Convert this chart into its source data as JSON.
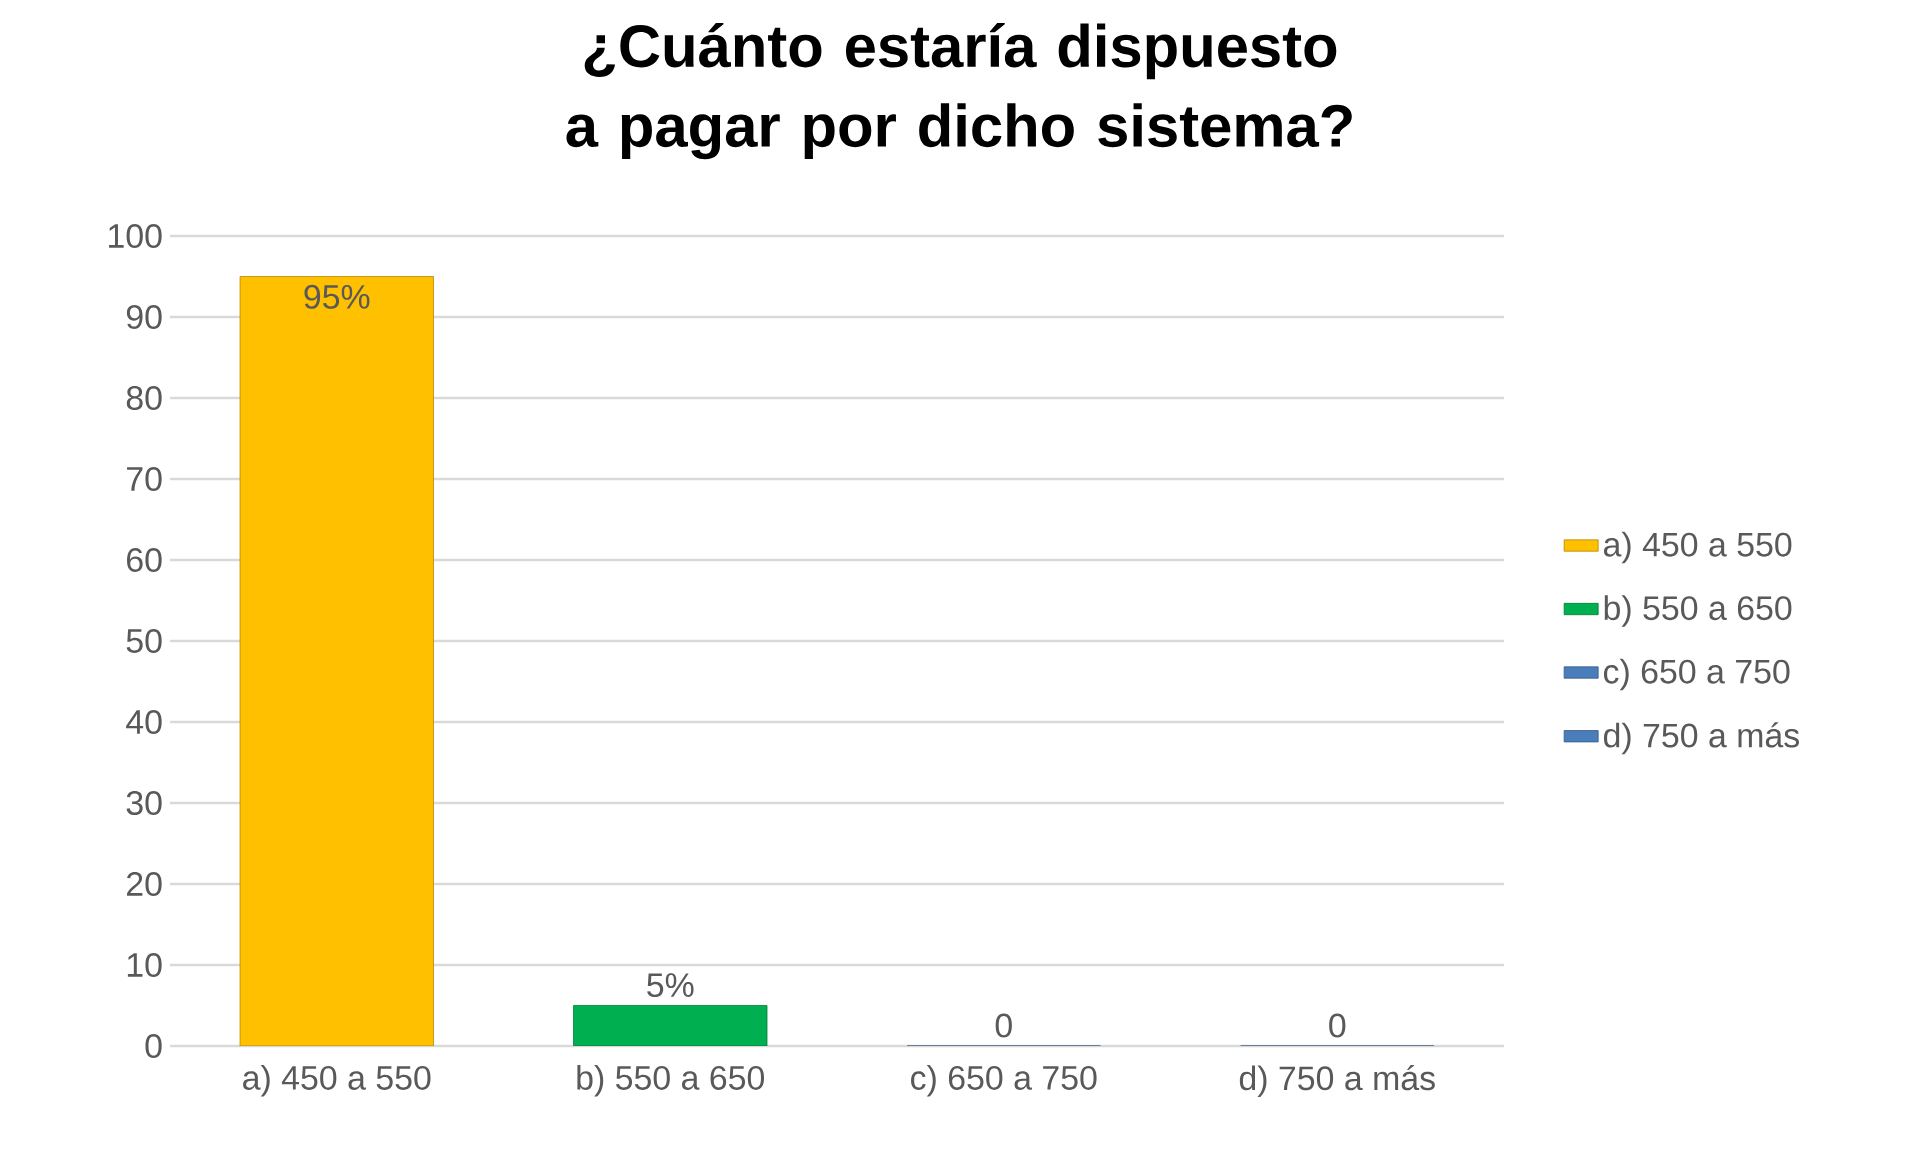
{
  "chart_data": {
    "type": "bar",
    "title": "¿Cuánto estaría dispuesto a pagar por dicho sistema?",
    "categories": [
      "a) 450 a 550",
      "b) 550 a 650",
      "c) 650 a 750",
      "d) 750 a más"
    ],
    "series": [
      {
        "name": "a) 450 a 550",
        "color": "#ffc000",
        "values": [
          95,
          null,
          null,
          null
        ],
        "value_labels": [
          "95%",
          null,
          null,
          null
        ]
      },
      {
        "name": "b) 550 a 650",
        "color": "#00b050",
        "values": [
          null,
          5,
          null,
          null
        ],
        "value_labels": [
          null,
          "5%",
          null,
          null
        ]
      },
      {
        "name": "c) 650 a 750",
        "color": "#4a7ebb",
        "values": [
          null,
          null,
          0,
          null
        ],
        "value_labels": [
          null,
          null,
          "0",
          null
        ]
      },
      {
        "name": "d) 750 a más",
        "color": "#4a7ebb",
        "values": [
          null,
          null,
          null,
          0
        ],
        "value_labels": [
          null,
          null,
          null,
          "0"
        ]
      }
    ],
    "ylim": [
      0,
      100
    ],
    "yticks": [
      0,
      10,
      20,
      30,
      40,
      50,
      60,
      70,
      80,
      90,
      100
    ],
    "grid": "y",
    "legend": "right"
  }
}
